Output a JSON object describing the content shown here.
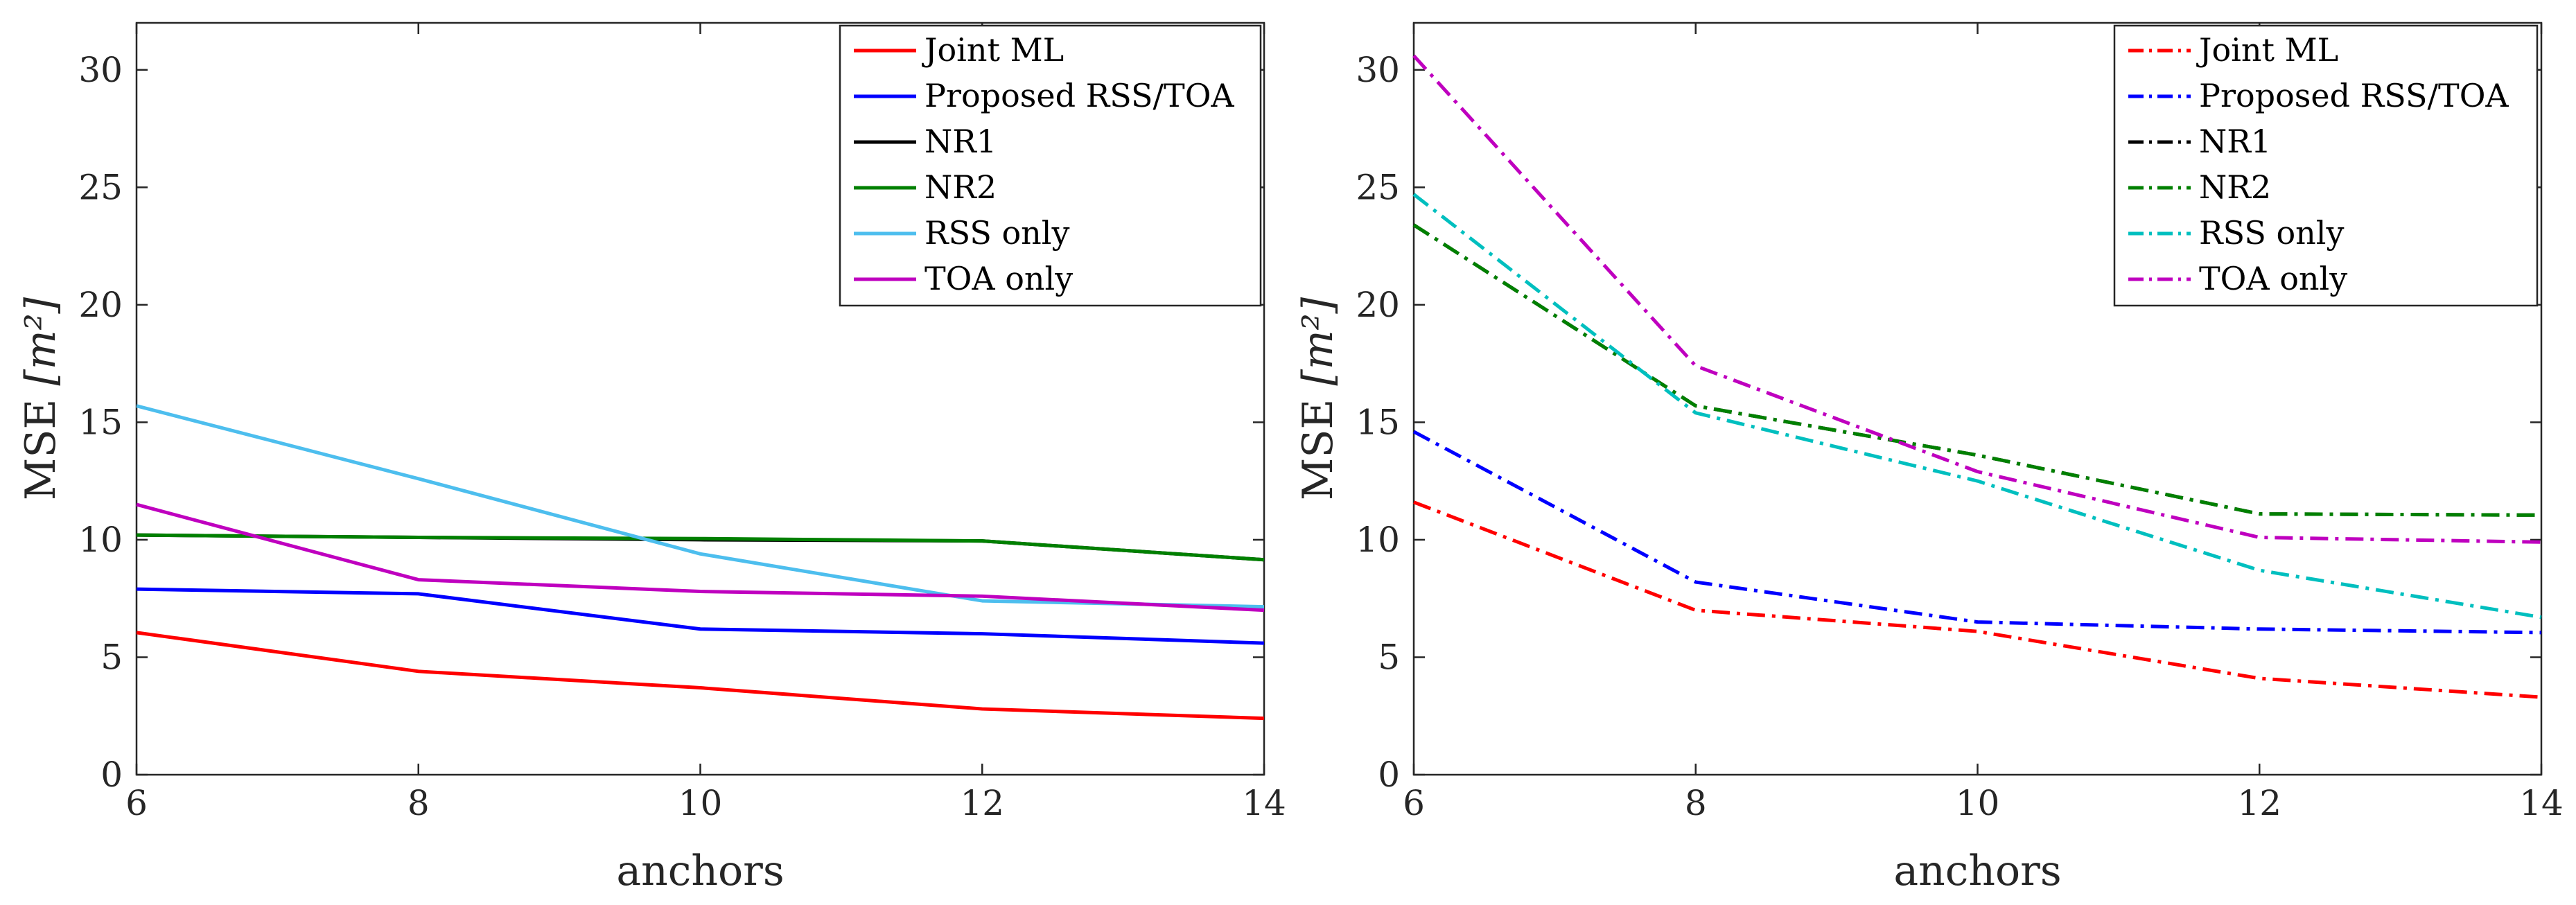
{
  "chart_data": [
    {
      "type": "line",
      "title": "",
      "xlabel": "anchors",
      "ylabel_main": "MSE",
      "ylabel_unit": "[m²]",
      "xlim": [
        6,
        14
      ],
      "ylim": [
        0,
        32
      ],
      "xticks": [
        6,
        8,
        10,
        12,
        14
      ],
      "yticks": [
        0,
        5,
        10,
        15,
        20,
        25,
        30
      ],
      "grid": false,
      "legend_position": "top-right",
      "line_style": "solid",
      "x": [
        6,
        8,
        10,
        12,
        14
      ],
      "series": [
        {
          "name": "Joint ML",
          "color": "#ff0000",
          "values": [
            6.05,
            4.4,
            3.7,
            2.8,
            2.4
          ]
        },
        {
          "name": "Proposed RSS/TOA",
          "color": "#0000ff",
          "values": [
            7.9,
            7.7,
            6.2,
            6.0,
            5.6
          ]
        },
        {
          "name": "NR1",
          "color": "#000000",
          "values": [
            10.2,
            10.1,
            10.0,
            9.95,
            9.15
          ]
        },
        {
          "name": "NR2",
          "color": "#008000",
          "values": [
            10.2,
            10.1,
            10.05,
            9.95,
            9.15
          ]
        },
        {
          "name": "RSS only",
          "color": "#4dbeee",
          "values": [
            15.7,
            12.6,
            9.4,
            7.4,
            7.15
          ]
        },
        {
          "name": "TOA only",
          "color": "#bf00bf",
          "values": [
            11.5,
            8.3,
            7.8,
            7.6,
            7.0
          ]
        }
      ]
    },
    {
      "type": "line",
      "title": "",
      "xlabel": "anchors",
      "ylabel_main": "MSE",
      "ylabel_unit": "[m²]",
      "xlim": [
        6,
        14
      ],
      "ylim": [
        0,
        32
      ],
      "xticks": [
        6,
        8,
        10,
        12,
        14
      ],
      "yticks": [
        0,
        5,
        10,
        15,
        20,
        25,
        30
      ],
      "grid": false,
      "legend_position": "top-right",
      "line_style": "dash-dot",
      "x": [
        6,
        8,
        10,
        12,
        14
      ],
      "series": [
        {
          "name": "Joint ML",
          "color": "#ff0000",
          "values": [
            11.6,
            7.0,
            6.1,
            4.1,
            3.3
          ]
        },
        {
          "name": "Proposed RSS/TOA",
          "color": "#0000ff",
          "values": [
            14.6,
            8.2,
            6.5,
            6.2,
            6.05
          ]
        },
        {
          "name": "NR1",
          "color": "#000000",
          "values": [
            23.4,
            15.7,
            13.6,
            11.1,
            11.05
          ]
        },
        {
          "name": "NR2",
          "color": "#008000",
          "values": [
            23.4,
            15.7,
            13.6,
            11.1,
            11.05
          ]
        },
        {
          "name": "RSS only",
          "color": "#00bfbf",
          "values": [
            24.7,
            15.4,
            12.5,
            8.7,
            6.7
          ]
        },
        {
          "name": "TOA only",
          "color": "#bf00bf",
          "values": [
            30.6,
            17.4,
            12.9,
            10.1,
            9.9
          ]
        }
      ]
    }
  ]
}
